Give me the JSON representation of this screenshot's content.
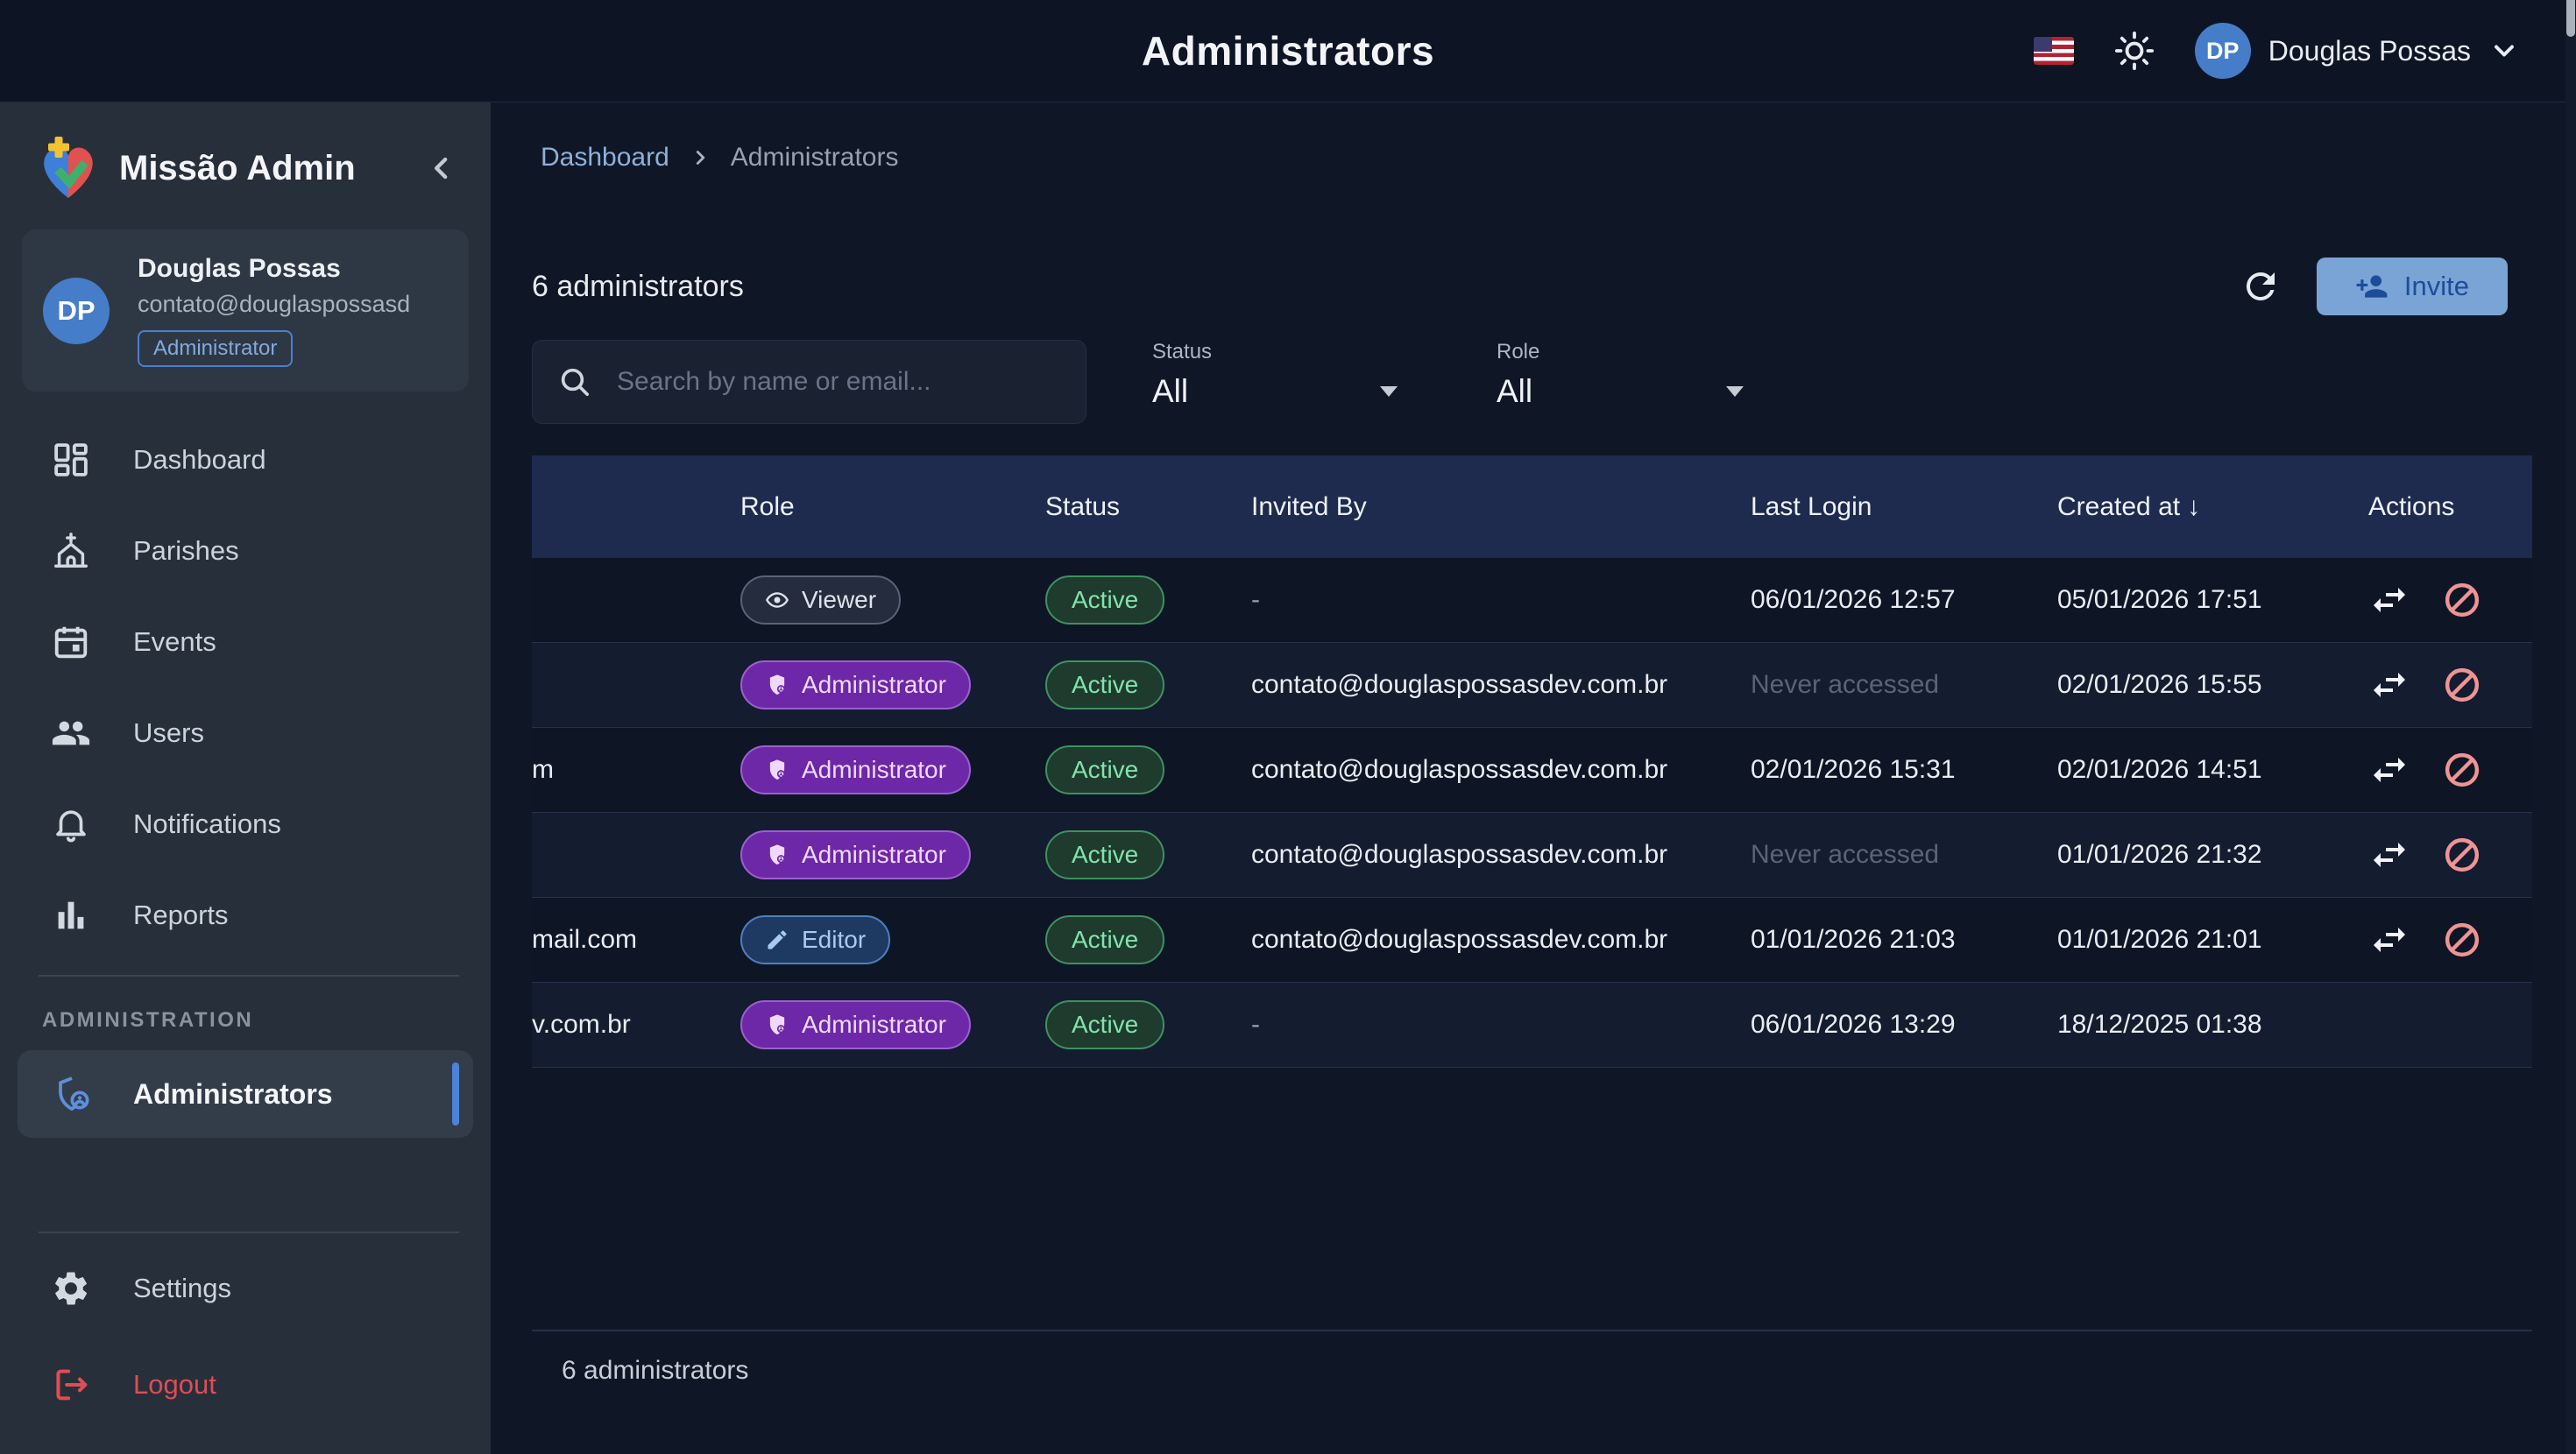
{
  "header": {
    "title": "Administrators",
    "user": {
      "initials": "DP",
      "name": "Douglas Possas"
    }
  },
  "sidebar": {
    "brand": "Missão Admin",
    "user": {
      "initials": "DP",
      "name": "Douglas Possas",
      "email": "contato@douglaspossasdev...",
      "badge": "Administrator"
    },
    "items": [
      {
        "label": "Dashboard",
        "icon": "dashboard"
      },
      {
        "label": "Parishes",
        "icon": "church"
      },
      {
        "label": "Events",
        "icon": "calendar"
      },
      {
        "label": "Users",
        "icon": "users"
      },
      {
        "label": "Notifications",
        "icon": "bell"
      },
      {
        "label": "Reports",
        "icon": "chart"
      }
    ],
    "section_label": "ADMINISTRATION",
    "admin_item": {
      "label": "Administrators"
    },
    "settings_label": "Settings",
    "logout_label": "Logout"
  },
  "breadcrumb": {
    "link": "Dashboard",
    "current": "Administrators"
  },
  "toolbar": {
    "count_text": "6 administrators",
    "search_placeholder": "Search by name or email...",
    "status_filter": {
      "label": "Status",
      "value": "All"
    },
    "role_filter": {
      "label": "Role",
      "value": "All"
    },
    "invite_label": "Invite"
  },
  "table": {
    "headers": {
      "name": "",
      "role": "Role",
      "status": "Status",
      "invited_by": "Invited By",
      "last_login": "Last Login",
      "created_at": "Created at",
      "actions": "Actions"
    },
    "sort": {
      "column": "Created at",
      "direction": "desc",
      "glyph": "↓"
    },
    "role_variants": {
      "Viewer": {
        "variant": "viewer",
        "icon": "eye"
      },
      "Administrator": {
        "variant": "admin",
        "icon": "shield"
      },
      "Editor": {
        "variant": "editor",
        "icon": "pencil"
      }
    },
    "rows": [
      {
        "name_fragment": "",
        "role": "Viewer",
        "status": "Active",
        "invited_by": "-",
        "last_login": "06/01/2026 12:57",
        "created_at": "05/01/2026 17:51",
        "has_actions": true
      },
      {
        "name_fragment": "",
        "role": "Administrator",
        "status": "Active",
        "invited_by": "contato@douglaspossasdev.com.br",
        "last_login": "Never accessed",
        "created_at": "02/01/2026 15:55",
        "has_actions": true
      },
      {
        "name_fragment": "m",
        "role": "Administrator",
        "status": "Active",
        "invited_by": "contato@douglaspossasdev.com.br",
        "last_login": "02/01/2026 15:31",
        "created_at": "02/01/2026 14:51",
        "has_actions": true
      },
      {
        "name_fragment": "",
        "role": "Administrator",
        "status": "Active",
        "invited_by": "contato@douglaspossasdev.com.br",
        "last_login": "Never accessed",
        "created_at": "01/01/2026 21:32",
        "has_actions": true
      },
      {
        "name_fragment": "mail.com",
        "role": "Editor",
        "status": "Active",
        "invited_by": "contato@douglaspossasdev.com.br",
        "last_login": "01/01/2026 21:03",
        "created_at": "01/01/2026 21:01",
        "has_actions": true
      },
      {
        "name_fragment": "v.com.br",
        "role": "Administrator",
        "status": "Active",
        "invited_by": "-",
        "last_login": "06/01/2026 13:29",
        "created_at": "18/12/2025 01:38",
        "has_actions": false
      }
    ]
  },
  "footer": {
    "count_text": "6 administrators"
  },
  "colors": {
    "header_bg": "#0d1424",
    "page_bg": "#0f1726",
    "sidebar_bg": "#272f3a",
    "table_header_bg": "#1e2b4e",
    "accent_blue": "#4d82d8",
    "invite_bg": "#7ba4d6",
    "invite_fg": "#1c4d9a",
    "active_green": "#82e3ab",
    "admin_purple": "#6d28a8",
    "editor_blue": "#1f3a62",
    "logout_red": "#e04c54",
    "block_red": "#ef9494"
  }
}
